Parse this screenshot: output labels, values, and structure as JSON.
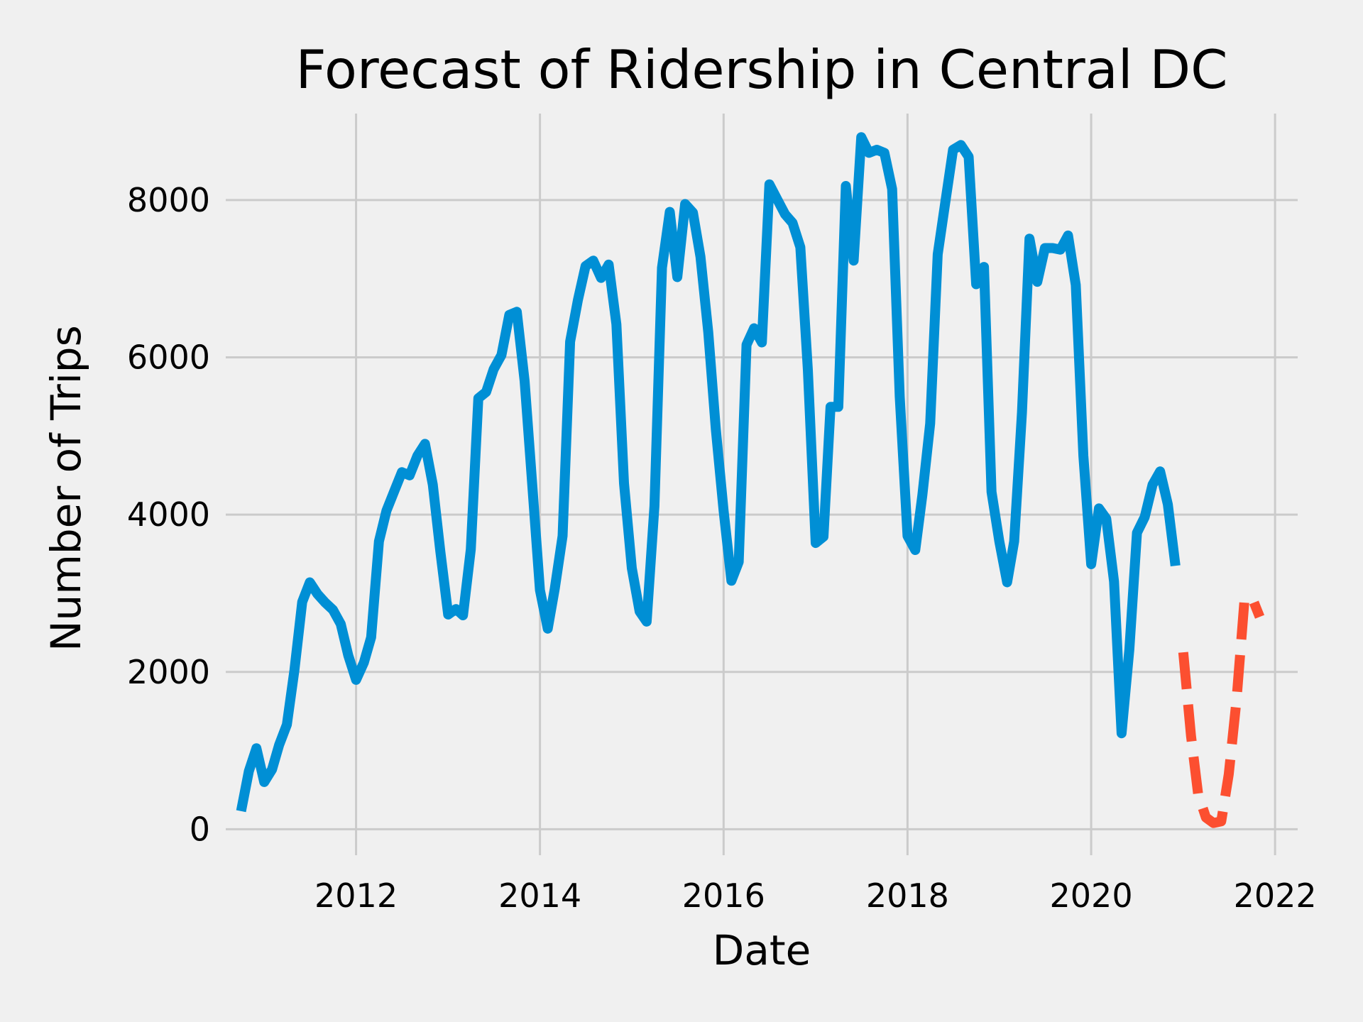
{
  "chart_data": {
    "type": "line",
    "title": "Forecast of Ridership in Central DC",
    "xlabel": "Date",
    "ylabel": "Number of Trips",
    "xlim": [
      "2010-08-01",
      "2022-04-01"
    ],
    "ylim": [
      -330,
      9100
    ],
    "x_ticks": [
      "2012-01-01",
      "2014-01-01",
      "2016-01-01",
      "2018-01-01",
      "2020-01-01",
      "2022-01-01"
    ],
    "x_tick_labels": [
      "2012",
      "2014",
      "2016",
      "2018",
      "2020",
      "2022"
    ],
    "y_ticks": [
      0,
      2000,
      4000,
      6000,
      8000
    ],
    "y_tick_labels": [
      "0",
      "2000",
      "4000",
      "6000",
      "8000"
    ],
    "grid": true,
    "colors": {
      "background": "#f0f0f0",
      "grid": "#cbcbcb",
      "observed": "#008fd5",
      "forecast": "#fc4f30"
    },
    "series": [
      {
        "style": "solid",
        "x": [
          "2010-10-01",
          "2010-11-01",
          "2010-12-01",
          "2011-01-01",
          "2011-02-01",
          "2011-03-01",
          "2011-04-01",
          "2011-05-01",
          "2011-06-01",
          "2011-07-01",
          "2011-08-01",
          "2011-09-01",
          "2011-10-01",
          "2011-11-01",
          "2011-12-01",
          "2012-01-01",
          "2012-02-01",
          "2012-03-01",
          "2012-04-01",
          "2012-05-01",
          "2012-06-01",
          "2012-07-01",
          "2012-08-01",
          "2012-09-01",
          "2012-10-01",
          "2012-11-01",
          "2012-12-01",
          "2013-01-01",
          "2013-02-01",
          "2013-03-01",
          "2013-04-01",
          "2013-05-01",
          "2013-06-01",
          "2013-07-01",
          "2013-08-01",
          "2013-09-01",
          "2013-10-01",
          "2013-11-01",
          "2013-12-01",
          "2014-01-01",
          "2014-02-01",
          "2014-03-01",
          "2014-04-01",
          "2014-05-01",
          "2014-06-01",
          "2014-07-01",
          "2014-08-01",
          "2014-09-01",
          "2014-10-01",
          "2014-11-01",
          "2014-12-01",
          "2015-01-01",
          "2015-02-01",
          "2015-03-01",
          "2015-04-01",
          "2015-05-01",
          "2015-06-01",
          "2015-07-01",
          "2015-08-01",
          "2015-09-01",
          "2015-10-01",
          "2015-11-01",
          "2015-12-01",
          "2016-01-01",
          "2016-02-01",
          "2016-03-01",
          "2016-04-01",
          "2016-05-01",
          "2016-06-01",
          "2016-07-01",
          "2016-08-01",
          "2016-09-01",
          "2016-10-01",
          "2016-11-01",
          "2016-12-01",
          "2017-01-01",
          "2017-02-01",
          "2017-03-01",
          "2017-04-01",
          "2017-05-01",
          "2017-06-01",
          "2017-07-01",
          "2017-08-01",
          "2017-09-01",
          "2017-10-01",
          "2017-11-01",
          "2017-12-01",
          "2018-01-01",
          "2018-02-01",
          "2018-03-01",
          "2018-04-01",
          "2018-05-01",
          "2018-06-01",
          "2018-07-01",
          "2018-08-01",
          "2018-09-01",
          "2018-10-01",
          "2018-11-01",
          "2018-12-01",
          "2019-01-01",
          "2019-02-01",
          "2019-03-01",
          "2019-04-01",
          "2019-05-01",
          "2019-06-01",
          "2019-07-01",
          "2019-08-01",
          "2019-09-01",
          "2019-10-01",
          "2019-11-01",
          "2019-12-01",
          "2020-01-01",
          "2020-02-01",
          "2020-03-01",
          "2020-04-01",
          "2020-05-01",
          "2020-06-01",
          "2020-07-01",
          "2020-08-01",
          "2020-09-01",
          "2020-10-01",
          "2020-11-01",
          "2020-12-01"
        ],
        "y": [
          230,
          740,
          1030,
          600,
          760,
          1070,
          1330,
          2020,
          2890,
          3140,
          2990,
          2880,
          2790,
          2610,
          2210,
          1900,
          2120,
          2440,
          3660,
          4050,
          4300,
          4540,
          4500,
          4750,
          4900,
          4380,
          3530,
          2730,
          2800,
          2720,
          3560,
          5480,
          5560,
          5850,
          6030,
          6540,
          6580,
          5700,
          4400,
          3040,
          2550,
          3060,
          3730,
          6200,
          6730,
          7160,
          7230,
          7010,
          7180,
          6420,
          4400,
          3320,
          2770,
          2640,
          4110,
          7140,
          7850,
          7020,
          7950,
          7840,
          7280,
          6320,
          5090,
          4050,
          3160,
          3400,
          6160,
          6370,
          6190,
          8200,
          8010,
          7820,
          7710,
          7400,
          5840,
          3640,
          3720,
          5370,
          5370,
          8180,
          7230,
          8800,
          8600,
          8640,
          8600,
          8140,
          5500,
          3730,
          3550,
          4250,
          5160,
          7310,
          7990,
          8640,
          8700,
          8550,
          6930,
          7150,
          4290,
          3660,
          3140,
          3660,
          5300,
          7510,
          6960,
          7390,
          7390,
          7370,
          7550,
          6920,
          4750,
          3370,
          4080,
          3950,
          3150,
          1220,
          2290,
          3770,
          3970,
          4380,
          4550,
          4130,
          3350
        ]
      },
      {
        "style": "dashed",
        "x": [
          "2021-01-01",
          "2021-02-01",
          "2021-03-01",
          "2021-04-01",
          "2021-05-01",
          "2021-06-01",
          "2021-07-01",
          "2021-08-01",
          "2021-09-01",
          "2021-10-01",
          "2021-11-01"
        ],
        "y": [
          2250,
          1190,
          450,
          150,
          80,
          100,
          700,
          1650,
          2900,
          2950,
          2700
        ]
      }
    ]
  }
}
